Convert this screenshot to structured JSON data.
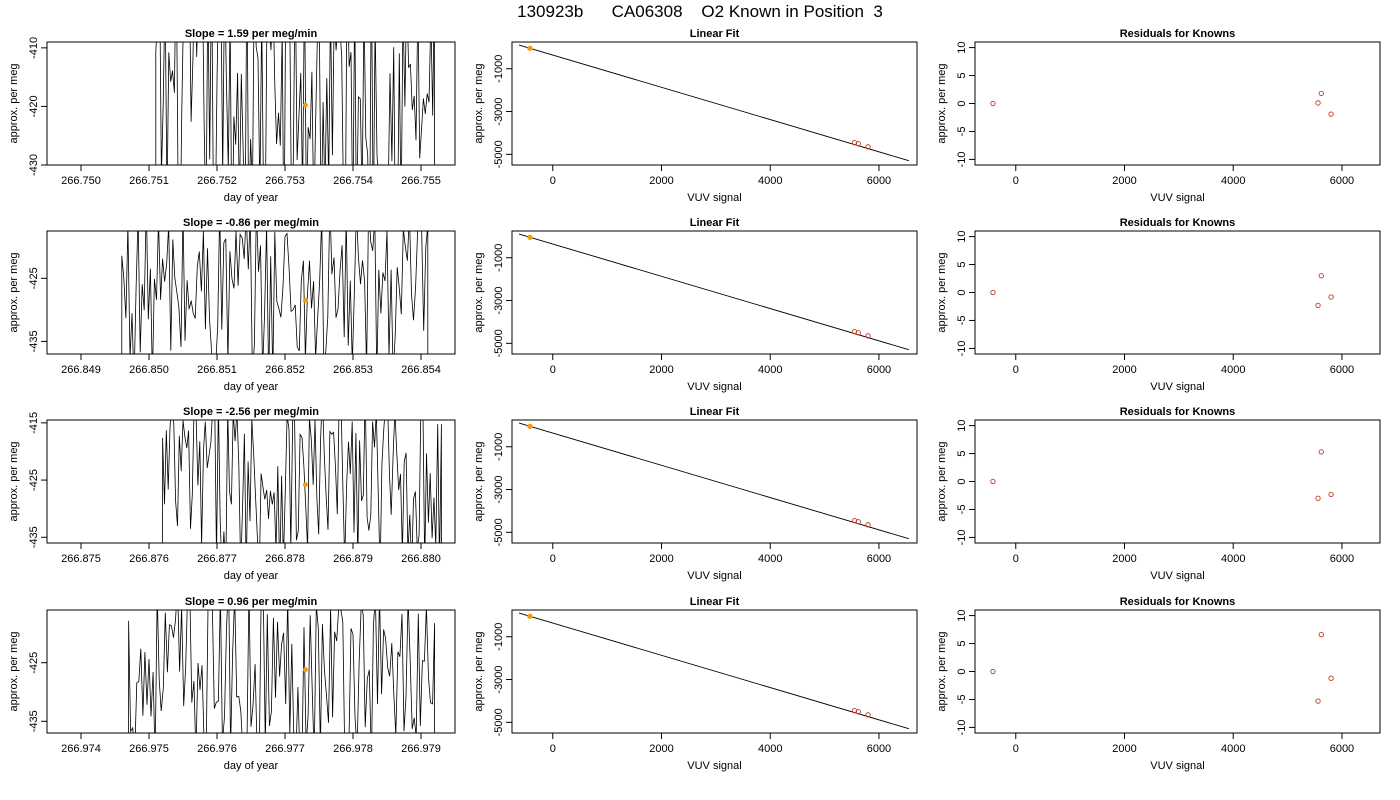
{
  "page": {
    "title": "130923b      CA06308    O2 Known in Position  3"
  },
  "colors": {
    "axis": "#000000",
    "trace": "#000000",
    "highlight": "#f39c12",
    "known_points": "#c0392b",
    "fit_points": "#c0392b"
  },
  "chart_data": [
    {
      "type": "line",
      "panel": "time-series",
      "row": 1,
      "title": "Slope =  1.59  per meg/min",
      "xlabel": "day of year",
      "ylabel": "approx. per meg",
      "xlim": [
        266.7495,
        266.7555
      ],
      "ylim": [
        -430,
        -409
      ],
      "xticks": [
        266.75,
        266.751,
        266.752,
        266.753,
        266.754,
        266.755
      ],
      "xtick_labels": [
        "266.750",
        "266.751",
        "266.752",
        "266.753",
        "266.754",
        "266.755"
      ],
      "yticks": [
        -410,
        -420,
        -430
      ],
      "ytick_labels": [
        "-410",
        "-420",
        "-430"
      ],
      "trace_range": [
        266.7511,
        266.7552
      ],
      "highlight_point": {
        "x": 266.7533,
        "y": -419.8
      }
    },
    {
      "type": "scatter",
      "panel": "linear-fit",
      "row": 1,
      "title": "Linear Fit",
      "xlabel": "VUV signal",
      "ylabel": "approx. per meg",
      "xlim": [
        -750,
        6700
      ],
      "ylim": [
        -5500,
        250
      ],
      "xticks": [
        0,
        2000,
        4000,
        6000
      ],
      "xtick_labels": [
        "0",
        "2000",
        "4000",
        "6000"
      ],
      "yticks": [
        -1000,
        -3000,
        -5000
      ],
      "ytick_labels": [
        "-1000",
        "-3000",
        "-5000"
      ],
      "fit_line": {
        "x": [
          -620,
          6550
        ],
        "y": [
          109,
          -5300
        ]
      },
      "points": [
        {
          "x": 5550,
          "y": -4455
        },
        {
          "x": 5620,
          "y": -4505
        },
        {
          "x": 5800,
          "y": -4650
        }
      ],
      "highlight_point": {
        "x": -420,
        "y": -43
      }
    },
    {
      "type": "scatter",
      "panel": "residuals",
      "row": 1,
      "title": "Residuals for Knowns",
      "xlabel": "VUV signal",
      "ylabel": "approx. per meg",
      "xlim": [
        -750,
        6700
      ],
      "ylim": [
        -11,
        11
      ],
      "xticks": [
        0,
        2000,
        4000,
        6000
      ],
      "xtick_labels": [
        "0",
        "2000",
        "4000",
        "6000"
      ],
      "yticks": [
        10,
        5,
        0,
        -5,
        -10
      ],
      "ytick_labels": [
        "10",
        "5",
        "0",
        "-5",
        "-10"
      ],
      "points": [
        {
          "x": -420,
          "y": 0
        },
        {
          "x": 5560,
          "y": 0.1
        },
        {
          "x": 5620,
          "y": 1.8
        },
        {
          "x": 5800,
          "y": -1.9
        }
      ]
    },
    {
      "type": "line",
      "panel": "time-series",
      "row": 2,
      "title": "Slope =  -0.86  per meg/min",
      "xlabel": "day of year",
      "ylabel": "approx. per meg",
      "xlim": [
        266.8485,
        266.8545
      ],
      "ylim": [
        -437,
        -417.5
      ],
      "xticks": [
        266.849,
        266.85,
        266.851,
        266.852,
        266.853,
        266.854
      ],
      "xtick_labels": [
        "266.849",
        "266.850",
        "266.851",
        "266.852",
        "266.853",
        "266.854"
      ],
      "yticks": [
        -425,
        -435
      ],
      "ytick_labels": [
        "-425",
        "-435"
      ],
      "trace_range": [
        266.8496,
        266.8541
      ],
      "highlight_point": {
        "x": 266.8523,
        "y": -428.5
      }
    },
    {
      "type": "scatter",
      "panel": "linear-fit",
      "row": 2,
      "title": "Linear Fit",
      "xlabel": "VUV signal",
      "ylabel": "approx. per meg",
      "xlim": [
        -750,
        6700
      ],
      "ylim": [
        -5500,
        250
      ],
      "xticks": [
        0,
        2000,
        4000,
        6000
      ],
      "xtick_labels": [
        "0",
        "2000",
        "4000",
        "6000"
      ],
      "yticks": [
        -1000,
        -3000,
        -5000
      ],
      "ytick_labels": [
        "-1000",
        "-3000",
        "-5000"
      ],
      "fit_line": {
        "x": [
          -620,
          6550
        ],
        "y": [
          109,
          -5300
        ]
      },
      "points": [
        {
          "x": 5550,
          "y": -4455
        },
        {
          "x": 5620,
          "y": -4505
        },
        {
          "x": 5800,
          "y": -4650
        }
      ],
      "highlight_point": {
        "x": -420,
        "y": -43
      }
    },
    {
      "type": "scatter",
      "panel": "residuals",
      "row": 2,
      "title": "Residuals for Knowns",
      "xlabel": "VUV signal",
      "ylabel": "approx. per meg",
      "xlim": [
        -750,
        6700
      ],
      "ylim": [
        -11,
        11
      ],
      "xticks": [
        0,
        2000,
        4000,
        6000
      ],
      "xtick_labels": [
        "0",
        "2000",
        "4000",
        "6000"
      ],
      "yticks": [
        10,
        5,
        0,
        -5,
        -10
      ],
      "ytick_labels": [
        "10",
        "5",
        "0",
        "-5",
        "-10"
      ],
      "points": [
        {
          "x": -420,
          "y": 0
        },
        {
          "x": 5560,
          "y": -2.3
        },
        {
          "x": 5620,
          "y": 3.0
        },
        {
          "x": 5800,
          "y": -0.8
        }
      ]
    },
    {
      "type": "line",
      "panel": "time-series",
      "row": 3,
      "title": "Slope =  -2.56  per meg/min",
      "xlabel": "day of year",
      "ylabel": "approx. per meg",
      "xlim": [
        266.8745,
        266.8805
      ],
      "ylim": [
        -436,
        -414.5
      ],
      "xticks": [
        266.875,
        266.876,
        266.877,
        266.878,
        266.879,
        266.88
      ],
      "xtick_labels": [
        "266.875",
        "266.876",
        "266.877",
        "266.878",
        "266.879",
        "266.880"
      ],
      "yticks": [
        -415,
        -425,
        -435
      ],
      "ytick_labels": [
        "-415",
        "-425",
        "-435"
      ],
      "trace_range": [
        266.8762,
        266.8803
      ],
      "highlight_point": {
        "x": 266.8783,
        "y": -425.8
      }
    },
    {
      "type": "scatter",
      "panel": "linear-fit",
      "row": 3,
      "title": "Linear Fit",
      "xlabel": "VUV signal",
      "ylabel": "approx. per meg",
      "xlim": [
        -750,
        6700
      ],
      "ylim": [
        -5500,
        250
      ],
      "xticks": [
        0,
        2000,
        4000,
        6000
      ],
      "xtick_labels": [
        "0",
        "2000",
        "4000",
        "6000"
      ],
      "yticks": [
        -1000,
        -3000,
        -5000
      ],
      "ytick_labels": [
        "-1000",
        "-3000",
        "-5000"
      ],
      "fit_line": {
        "x": [
          -620,
          6550
        ],
        "y": [
          109,
          -5300
        ]
      },
      "points": [
        {
          "x": 5550,
          "y": -4455
        },
        {
          "x": 5620,
          "y": -4505
        },
        {
          "x": 5800,
          "y": -4650
        }
      ],
      "highlight_point": {
        "x": -420,
        "y": -43
      }
    },
    {
      "type": "scatter",
      "panel": "residuals",
      "row": 3,
      "title": "Residuals for Knowns",
      "xlabel": "VUV signal",
      "ylabel": "approx. per meg",
      "xlim": [
        -750,
        6700
      ],
      "ylim": [
        -11,
        11
      ],
      "xticks": [
        0,
        2000,
        4000,
        6000
      ],
      "xtick_labels": [
        "0",
        "2000",
        "4000",
        "6000"
      ],
      "yticks": [
        10,
        5,
        0,
        -5,
        -10
      ],
      "ytick_labels": [
        "10",
        "5",
        "0",
        "-5",
        "-10"
      ],
      "points": [
        {
          "x": -420,
          "y": 0
        },
        {
          "x": 5560,
          "y": -3.0
        },
        {
          "x": 5620,
          "y": 5.3
        },
        {
          "x": 5800,
          "y": -2.3
        }
      ]
    },
    {
      "type": "line",
      "panel": "time-series",
      "row": 4,
      "title": "Slope =  0.96  per meg/min",
      "xlabel": "day of year",
      "ylabel": "approx. per meg",
      "xlim": [
        266.9735,
        266.9795
      ],
      "ylim": [
        -437,
        -416
      ],
      "xticks": [
        266.974,
        266.975,
        266.976,
        266.977,
        266.978,
        266.979
      ],
      "xtick_labels": [
        "266.974",
        "266.975",
        "266.976",
        "266.977",
        "266.978",
        "266.979"
      ],
      "yticks": [
        -425,
        -435
      ],
      "ytick_labels": [
        "-425",
        "-435"
      ],
      "trace_range": [
        266.9747,
        266.9792
      ],
      "highlight_point": {
        "x": 266.9773,
        "y": -426.2
      }
    },
    {
      "type": "scatter",
      "panel": "linear-fit",
      "row": 4,
      "title": "Linear Fit",
      "xlabel": "VUV signal",
      "ylabel": "approx. per meg",
      "xlim": [
        -750,
        6700
      ],
      "ylim": [
        -5500,
        250
      ],
      "xticks": [
        0,
        2000,
        4000,
        6000
      ],
      "xtick_labels": [
        "0",
        "2000",
        "4000",
        "6000"
      ],
      "yticks": [
        -1000,
        -3000,
        -5000
      ],
      "ytick_labels": [
        "-1000",
        "-3000",
        "-5000"
      ],
      "fit_line": {
        "x": [
          -620,
          6550
        ],
        "y": [
          109,
          -5300
        ]
      },
      "points": [
        {
          "x": 5550,
          "y": -4455
        },
        {
          "x": 5620,
          "y": -4505
        },
        {
          "x": 5800,
          "y": -4650
        }
      ],
      "highlight_point": {
        "x": -420,
        "y": -43
      }
    },
    {
      "type": "scatter",
      "panel": "residuals",
      "row": 4,
      "title": "Residuals for Knowns",
      "xlabel": "VUV signal",
      "ylabel": "approx. per meg",
      "xlim": [
        -750,
        6700
      ],
      "ylim": [
        -11,
        11
      ],
      "xticks": [
        0,
        2000,
        4000,
        6000
      ],
      "xtick_labels": [
        "0",
        "2000",
        "4000",
        "6000"
      ],
      "yticks": [
        10,
        5,
        0,
        -5,
        -10
      ],
      "ytick_labels": [
        "10",
        "5",
        "0",
        "-5",
        "-10"
      ],
      "points": [
        {
          "x": -420,
          "y": 0
        },
        {
          "x": 5560,
          "y": -5.3
        },
        {
          "x": 5620,
          "y": 6.6
        },
        {
          "x": 5800,
          "y": -1.2
        }
      ]
    }
  ]
}
